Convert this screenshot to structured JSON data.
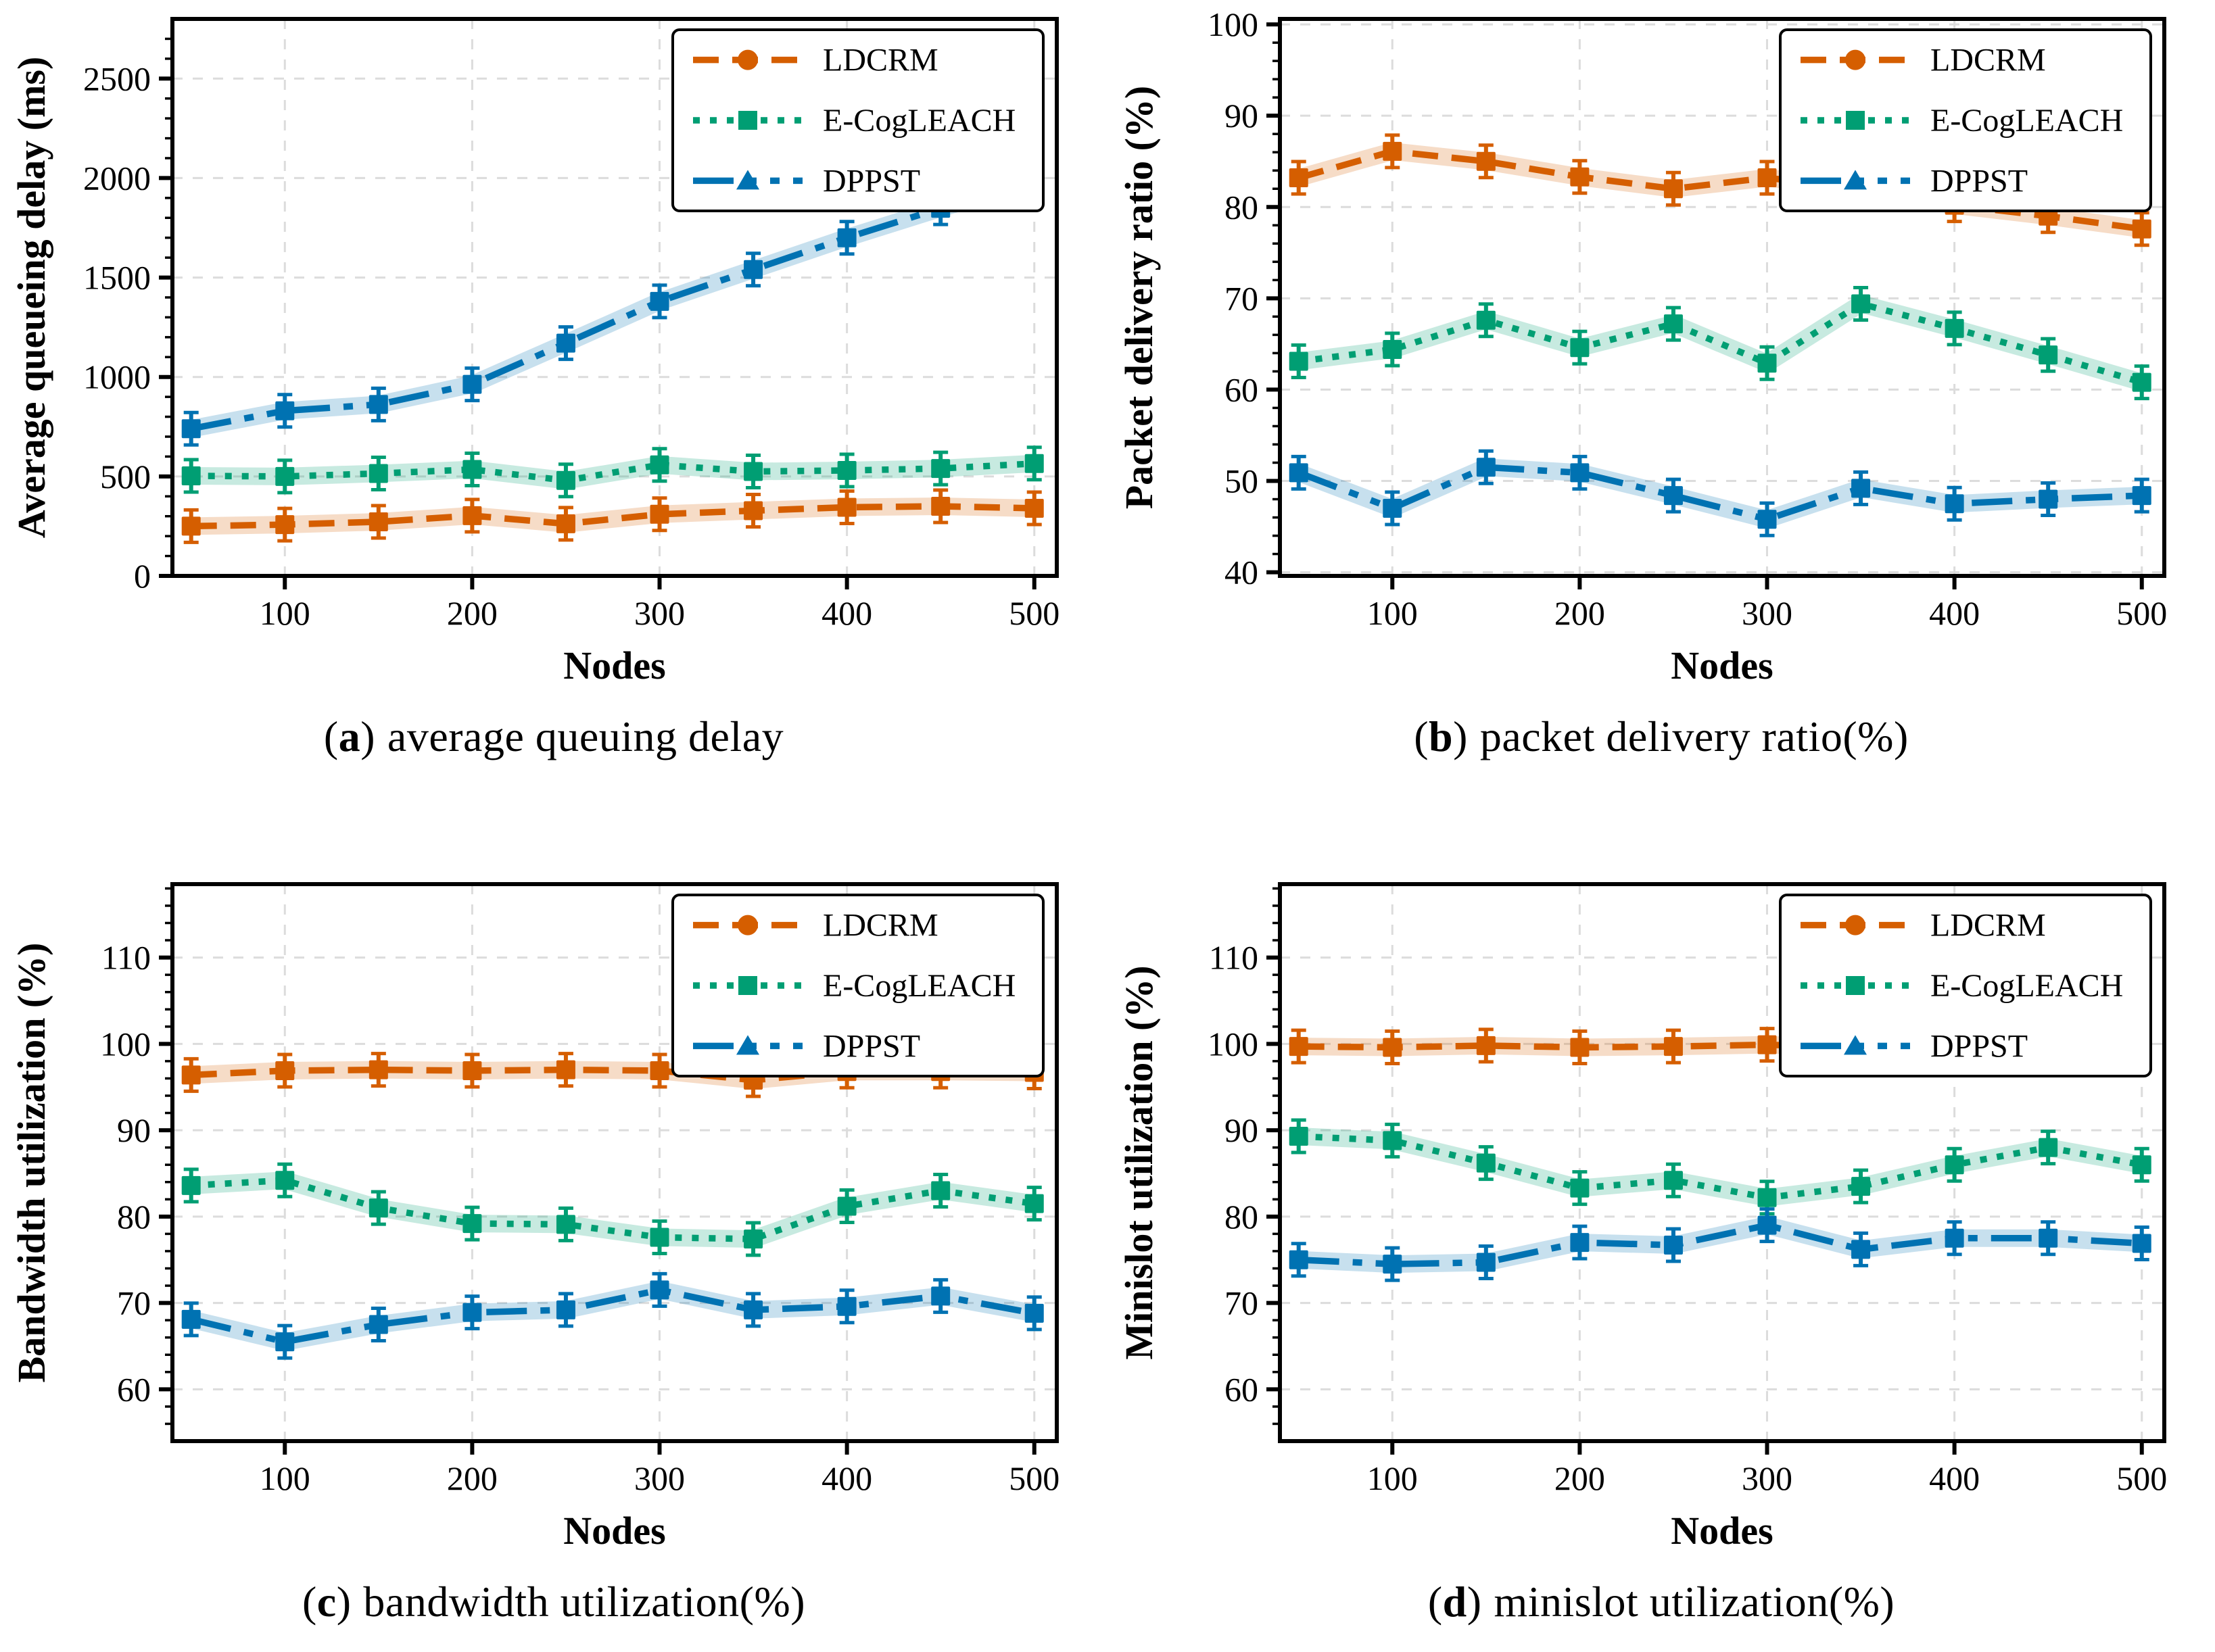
{
  "figure": {
    "background": "#ffffff",
    "x_label": "Nodes",
    "legend_entries": [
      "LDCRM",
      "E-CogLEACH",
      "DPPST"
    ],
    "accent_colors": {
      "ldcrm": "#D55E00",
      "ecogleach": "#009E73",
      "dppst": "#0072B2",
      "grid": "#DCDCDC",
      "axis": "#000000"
    }
  },
  "chart_data": [
    {
      "type": "line",
      "caption": {
        "open": "(",
        "letter": "a",
        "close": ")",
        "text": "average queuing delay"
      },
      "xlabel": "Nodes",
      "ylabel": "Average queueing delay (ms)",
      "x": [
        50,
        100,
        150,
        200,
        250,
        300,
        350,
        400,
        450,
        500
      ],
      "xlim": [
        40,
        512
      ],
      "ylim": [
        0,
        2800
      ],
      "xticks": [
        100,
        200,
        300,
        400,
        500
      ],
      "yticks": [
        0,
        500,
        1000,
        1500,
        2000,
        2500
      ],
      "grid": true,
      "legend_position": "top-right",
      "series": [
        {
          "name": "LDCRM",
          "color": "#D55E00",
          "dash": "38 20",
          "marker": "circle",
          "values": [
            250,
            258,
            272,
            303,
            262,
            310,
            328,
            345,
            350,
            340
          ]
        },
        {
          "name": "E-CogLEACH",
          "color": "#009E73",
          "dash": "10 15",
          "marker": "square",
          "values": [
            503,
            500,
            515,
            535,
            480,
            558,
            525,
            530,
            540,
            565
          ]
        },
        {
          "name": "DPPST",
          "color": "#0072B2",
          "dash": "60 20 14 20 14 20",
          "marker": "triangle",
          "values": [
            740,
            830,
            862,
            963,
            1170,
            1380,
            1540,
            1700,
            1848,
            1990
          ]
        }
      ]
    },
    {
      "type": "line",
      "caption": {
        "open": "(",
        "letter": "b",
        "close": ")",
        "text": "packet delivery ratio(%)"
      },
      "xlabel": "Nodes",
      "ylabel": "Packet delivery ratio (%)",
      "x": [
        50,
        100,
        150,
        200,
        250,
        300,
        350,
        400,
        450,
        500
      ],
      "xlim": [
        40,
        512
      ],
      "ylim": [
        39.6,
        100.6
      ],
      "xticks": [
        100,
        200,
        300,
        400,
        500
      ],
      "yticks": [
        40,
        50,
        60,
        70,
        80,
        90,
        100
      ],
      "grid": true,
      "legend_position": "top-right",
      "series": [
        {
          "name": "LDCRM",
          "color": "#D55E00",
          "dash": "38 20",
          "marker": "circle",
          "values": [
            83.2,
            86.1,
            85.0,
            83.3,
            82.0,
            83.2,
            82.0,
            80.2,
            79.0,
            77.6
          ]
        },
        {
          "name": "E-CogLEACH",
          "color": "#009E73",
          "dash": "10 15",
          "marker": "square",
          "values": [
            63.1,
            64.4,
            67.6,
            64.6,
            67.2,
            62.9,
            69.4,
            66.7,
            63.8,
            60.8
          ]
        },
        {
          "name": "DPPST",
          "color": "#0072B2",
          "dash": "60 20 14 20 14 20",
          "marker": "triangle",
          "values": [
            50.9,
            47.0,
            51.5,
            50.9,
            48.4,
            45.8,
            49.2,
            47.5,
            48.0,
            48.4
          ]
        }
      ]
    },
    {
      "type": "line",
      "caption": {
        "open": "(",
        "letter": "c",
        "close": ")",
        "text": "bandwidth utilization(%)"
      },
      "xlabel": "Nodes",
      "ylabel": "Bandwidth utilization (%)",
      "x": [
        50,
        100,
        150,
        200,
        250,
        300,
        350,
        400,
        450,
        500
      ],
      "xlim": [
        40,
        512
      ],
      "ylim": [
        54,
        118.5
      ],
      "xticks": [
        100,
        200,
        300,
        400,
        500
      ],
      "yticks": [
        60,
        70,
        80,
        90,
        100,
        110
      ],
      "grid": true,
      "legend_position": "top-right",
      "series": [
        {
          "name": "LDCRM",
          "color": "#D55E00",
          "dash": "38 20",
          "marker": "circle",
          "values": [
            96.4,
            96.9,
            97.0,
            96.9,
            97.0,
            96.9,
            95.8,
            96.8,
            96.8,
            96.7
          ]
        },
        {
          "name": "E-CogLEACH",
          "color": "#009E73",
          "dash": "10 15",
          "marker": "square",
          "values": [
            83.6,
            84.2,
            81.0,
            79.2,
            79.1,
            77.6,
            77.4,
            81.2,
            83.0,
            81.5
          ]
        },
        {
          "name": "DPPST",
          "color": "#0072B2",
          "dash": "60 20 14 20 14 20",
          "marker": "triangle",
          "values": [
            68.1,
            65.5,
            67.5,
            68.9,
            69.2,
            71.5,
            69.2,
            69.6,
            70.8,
            68.8
          ]
        }
      ]
    },
    {
      "type": "line",
      "caption": {
        "open": "(",
        "letter": "d",
        "close": ")",
        "text": "minislot utilization(%)"
      },
      "xlabel": "Nodes",
      "ylabel": "Minislot utilization (%)",
      "x": [
        50,
        100,
        150,
        200,
        250,
        300,
        350,
        400,
        450,
        500
      ],
      "xlim": [
        40,
        512
      ],
      "ylim": [
        54,
        118.5
      ],
      "xticks": [
        100,
        200,
        300,
        400,
        500
      ],
      "yticks": [
        60,
        70,
        80,
        90,
        100,
        110
      ],
      "grid": true,
      "legend_position": "top-right",
      "series": [
        {
          "name": "LDCRM",
          "color": "#D55E00",
          "dash": "38 20",
          "marker": "circle",
          "values": [
            99.7,
            99.6,
            99.8,
            99.6,
            99.7,
            99.9,
            99.6,
            99.8,
            100.0,
            99.9
          ]
        },
        {
          "name": "E-CogLEACH",
          "color": "#009E73",
          "dash": "10 15",
          "marker": "square",
          "values": [
            89.3,
            88.8,
            86.2,
            83.3,
            84.2,
            82.2,
            83.5,
            86.0,
            88.0,
            86.0
          ]
        },
        {
          "name": "DPPST",
          "color": "#0072B2",
          "dash": "60 20 14 20 14 20",
          "marker": "triangle",
          "values": [
            75.0,
            74.5,
            74.7,
            77.0,
            76.7,
            79.0,
            76.2,
            77.5,
            77.5,
            76.9
          ]
        }
      ]
    }
  ]
}
